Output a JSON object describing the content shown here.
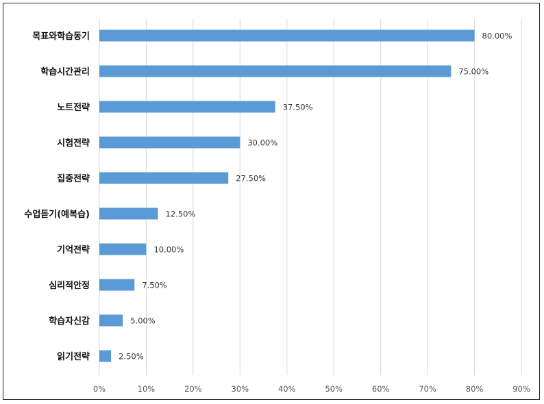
{
  "chart_data": {
    "type": "bar",
    "orientation": "horizontal",
    "title": "",
    "xlabel": "",
    "ylabel": "",
    "categories": [
      "목표와학습동기",
      "학습시간관리",
      "노트전략",
      "시험전략",
      "집중전략",
      "수업듣기(예복습)",
      "기억전략",
      "심리적안정",
      "학습자신감",
      "읽기전략"
    ],
    "values": [
      80.0,
      75.0,
      37.5,
      30.0,
      27.5,
      12.5,
      10.0,
      7.5,
      5.0,
      2.5
    ],
    "value_labels": [
      "80.00%",
      "75.00%",
      "37.50%",
      "30.00%",
      "27.50%",
      "12.50%",
      "10.00%",
      "7.50%",
      "5.00%",
      "2.50%"
    ],
    "xlim": [
      0,
      90
    ],
    "x_ticks": [
      0,
      10,
      20,
      30,
      40,
      50,
      60,
      70,
      80,
      90
    ],
    "x_tick_labels": [
      "0%",
      "10%",
      "20%",
      "30%",
      "40%",
      "50%",
      "60%",
      "70%",
      "80%",
      "90%"
    ],
    "grid": "vertical",
    "legend": "none",
    "colors": {
      "bar": "#5b9bd5",
      "grid": "#d9d9d9",
      "frame": "#222222"
    }
  }
}
